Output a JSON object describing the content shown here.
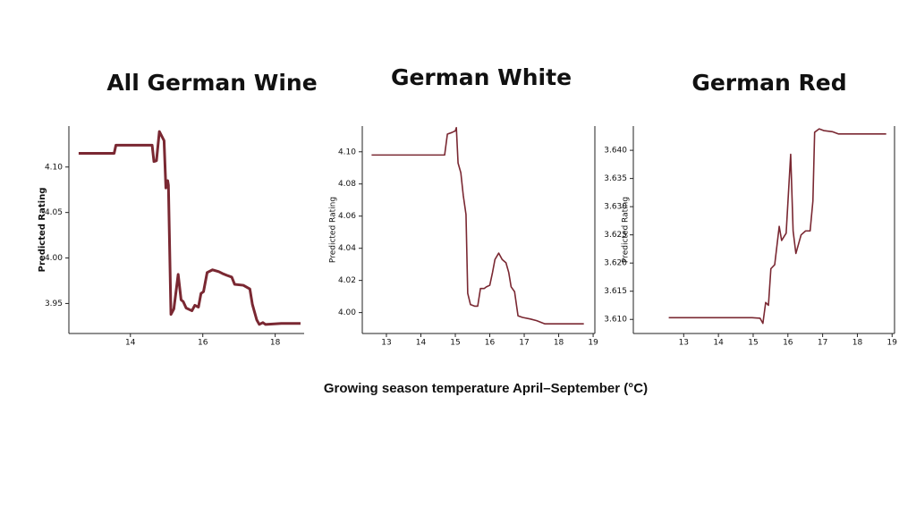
{
  "xlabel": "Growing season temperature April–September (°C)",
  "chart_data": [
    {
      "type": "line",
      "title": "All German Wine",
      "ylabel": "Predicted Rating",
      "color": "#7a2832",
      "x": [
        12.57,
        13.55,
        13.6,
        14.6,
        14.65,
        14.72,
        14.8,
        14.93,
        14.98,
        15.03,
        15.05,
        15.12,
        15.2,
        15.32,
        15.4,
        15.46,
        15.54,
        15.7,
        15.78,
        15.88,
        15.95,
        16.02,
        16.12,
        16.27,
        16.44,
        16.54,
        16.66,
        16.8,
        16.88,
        17.12,
        17.3,
        17.37,
        17.49,
        17.56,
        17.66,
        17.73,
        18.17,
        18.7
      ],
      "values": [
        4.115,
        4.115,
        4.124,
        4.124,
        4.106,
        4.107,
        4.139,
        4.129,
        4.077,
        4.085,
        4.08,
        3.938,
        3.944,
        3.982,
        3.954,
        3.952,
        3.945,
        3.942,
        3.948,
        3.946,
        3.961,
        3.963,
        3.984,
        3.987,
        3.985,
        3.983,
        3.981,
        3.979,
        3.971,
        3.97,
        3.966,
        3.949,
        3.932,
        3.927,
        3.929,
        3.927,
        3.928,
        3.928
      ],
      "xlim": [
        12.3,
        18.8
      ],
      "ylim": [
        3.917,
        4.145
      ],
      "xticks": [
        14,
        16,
        18
      ],
      "yticks": [
        3.95,
        {
          "value": 4,
          "label": "4.00"
        },
        4.05,
        {
          "value": 4.1,
          "label": "4.10"
        }
      ]
    },
    {
      "type": "line",
      "title": "German White",
      "ylabel": "Predicted Rating",
      "color": "#7a2832",
      "x": [
        12.57,
        14.69,
        14.77,
        14.9,
        15,
        15.03,
        15.08,
        15.16,
        15.23,
        15.31,
        15.36,
        15.44,
        15.56,
        15.65,
        15.73,
        15.84,
        15.9,
        16,
        16.08,
        16.15,
        16.26,
        16.36,
        16.47,
        16.55,
        16.62,
        16.72,
        16.82,
        16.95,
        17.18,
        17.36,
        17.6,
        18.73
      ],
      "values": [
        4.098,
        4.098,
        4.111,
        4.112,
        4.113,
        4.115,
        4.093,
        4.087,
        4.073,
        4.061,
        4.012,
        4.005,
        4.004,
        4.004,
        4.015,
        4.015,
        4.016,
        4.017,
        4.025,
        4.033,
        4.037,
        4.033,
        4.031,
        4.025,
        4.016,
        4.013,
        3.998,
        3.997,
        3.996,
        3.995,
        3.993,
        3.993
      ],
      "xlim": [
        12.3,
        19.05
      ],
      "ylim": [
        3.987,
        4.116
      ],
      "xticks": [
        13,
        14,
        15,
        16,
        17,
        18,
        19
      ],
      "yticks": [
        {
          "value": 4,
          "label": "4.00"
        },
        4.02,
        4.04,
        4.06,
        4.08,
        {
          "value": 4.1,
          "label": "4.10"
        }
      ]
    },
    {
      "type": "line",
      "title": "German Red",
      "ylabel": "Predicted Rating",
      "color": "#7a2832",
      "x": [
        12.57,
        14.97,
        15.2,
        15.28,
        15.36,
        15.44,
        15.51,
        15.62,
        15.75,
        15.82,
        15.95,
        16.08,
        16.15,
        16.23,
        16.38,
        16.51,
        16.64,
        16.72,
        16.77,
        16.9,
        17.03,
        17.28,
        17.46,
        18.83
      ],
      "values": [
        3.6103,
        3.6103,
        3.6102,
        3.6093,
        3.613,
        3.6125,
        3.619,
        3.6197,
        3.6265,
        3.624,
        3.6253,
        3.6393,
        3.6257,
        3.6217,
        3.625,
        3.6257,
        3.6257,
        3.631,
        3.6432,
        3.6438,
        3.6435,
        3.6433,
        3.6429,
        3.6429
      ],
      "xlim": [
        11.55,
        19.07
      ],
      "ylim": [
        3.6075,
        3.6443
      ],
      "xticks": [
        13,
        14,
        15,
        16,
        17,
        18,
        19
      ],
      "yticks": [
        {
          "value": 3.61,
          "label": "3.610"
        },
        3.615,
        {
          "value": 3.62,
          "label": "3.620"
        },
        3.625,
        {
          "value": 3.63,
          "label": "3.630"
        },
        3.635,
        {
          "value": 3.64,
          "label": "3.640"
        }
      ]
    }
  ]
}
